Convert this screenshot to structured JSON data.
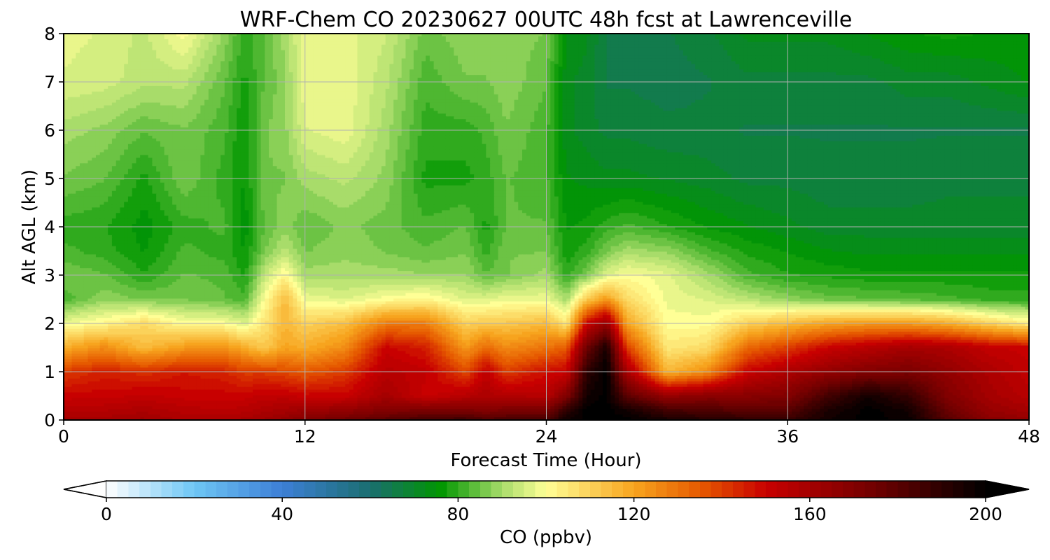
{
  "chart_data": {
    "type": "heatmap",
    "subtype": "filled-contour time-height cross section",
    "title": "WRF-Chem CO  20230627 00UTC 48h fcst at Lawrenceville",
    "xlabel": "Forecast Time (Hour)",
    "ylabel": "Alt AGL (km)",
    "xlim": [
      0,
      48
    ],
    "ylim": [
      0,
      8
    ],
    "xticks": [
      0,
      12,
      24,
      36,
      48
    ],
    "yticks": [
      0,
      1,
      2,
      3,
      4,
      5,
      6,
      7,
      8
    ],
    "grid": true,
    "colorbar": {
      "label": "CO  (ppbv)",
      "orientation": "horizontal",
      "position": "bottom",
      "range": [
        0,
        200
      ],
      "ticks": [
        0,
        40,
        80,
        120,
        160,
        200
      ],
      "extend": "both",
      "color_stops": [
        {
          "value": 0,
          "color": "#ffffff"
        },
        {
          "value": 20,
          "color": "#6ec6f5"
        },
        {
          "value": 40,
          "color": "#3d7fd6"
        },
        {
          "value": 60,
          "color": "#1a6e70"
        },
        {
          "value": 76,
          "color": "#009600"
        },
        {
          "value": 90,
          "color": "#a8dc6a"
        },
        {
          "value": 100,
          "color": "#ffff96"
        },
        {
          "value": 120,
          "color": "#f7a41e"
        },
        {
          "value": 135,
          "color": "#e65a00"
        },
        {
          "value": 150,
          "color": "#c80000"
        },
        {
          "value": 175,
          "color": "#700000"
        },
        {
          "value": 200,
          "color": "#000000"
        }
      ]
    },
    "x": [
      0,
      2,
      4,
      6,
      8,
      9,
      10,
      11,
      12,
      14,
      16,
      18,
      20,
      21,
      22,
      24,
      25,
      26,
      27,
      28,
      30,
      32,
      34,
      36,
      38,
      40,
      42,
      44,
      46,
      48
    ],
    "y": [
      0,
      0.2,
      0.5,
      1,
      1.5,
      2,
      2.5,
      3,
      3.5,
      4,
      5,
      6,
      7,
      8
    ],
    "z": [
      [
        160,
        160,
        162,
        158,
        158,
        160,
        162,
        165,
        170,
        175,
        180,
        185,
        186,
        182,
        184,
        184,
        196,
        200,
        200,
        200,
        195,
        192,
        190,
        188,
        196,
        200,
        198,
        180,
        168,
        165
      ],
      [
        155,
        156,
        158,
        155,
        154,
        155,
        158,
        160,
        162,
        165,
        170,
        172,
        172,
        170,
        172,
        172,
        190,
        200,
        200,
        196,
        185,
        182,
        180,
        180,
        194,
        200,
        196,
        176,
        164,
        160
      ],
      [
        150,
        150,
        152,
        150,
        150,
        150,
        152,
        152,
        150,
        150,
        160,
        150,
        155,
        158,
        156,
        155,
        170,
        196,
        200,
        180,
        164,
        168,
        168,
        170,
        185,
        196,
        188,
        170,
        160,
        155
      ],
      [
        140,
        145,
        142,
        146,
        144,
        140,
        140,
        138,
        135,
        140,
        155,
        152,
        138,
        152,
        140,
        148,
        150,
        190,
        200,
        160,
        116,
        125,
        150,
        158,
        165,
        170,
        172,
        165,
        158,
        152
      ],
      [
        118,
        125,
        115,
        122,
        123,
        118,
        112,
        120,
        118,
        125,
        150,
        145,
        122,
        132,
        125,
        130,
        135,
        175,
        195,
        140,
        105,
        108,
        132,
        140,
        150,
        155,
        160,
        158,
        152,
        150
      ],
      [
        98,
        102,
        108,
        100,
        100,
        96,
        106,
        116,
        110,
        114,
        128,
        128,
        110,
        112,
        112,
        115,
        105,
        150,
        165,
        120,
        100,
        100,
        110,
        115,
        120,
        122,
        122,
        118,
        110,
        103
      ],
      [
        82,
        88,
        86,
        86,
        84,
        82,
        100,
        115,
        98,
        96,
        100,
        102,
        96,
        96,
        98,
        98,
        90,
        112,
        122,
        108,
        98,
        96,
        92,
        88,
        85,
        84,
        83,
        82,
        80,
        80
      ],
      [
        86,
        84,
        79,
        84,
        83,
        78,
        93,
        102,
        90,
        90,
        90,
        89,
        89,
        84,
        86,
        90,
        80,
        86,
        96,
        100,
        97,
        90,
        82,
        79,
        78,
        77,
        77,
        77,
        77,
        77
      ],
      [
        82,
        80,
        76,
        82,
        80,
        76,
        86,
        92,
        86,
        88,
        86,
        84,
        86,
        80,
        86,
        86,
        77,
        80,
        86,
        90,
        88,
        82,
        78,
        76,
        74,
        73,
        73,
        73,
        73,
        73
      ],
      [
        80,
        79,
        75,
        80,
        82,
        75,
        84,
        88,
        84,
        87,
        85,
        82,
        84,
        78,
        84,
        84,
        76,
        77,
        80,
        82,
        79,
        76,
        74,
        72,
        70,
        70,
        70,
        70,
        70,
        70
      ],
      [
        86,
        84,
        78,
        86,
        80,
        76,
        86,
        86,
        90,
        92,
        88,
        78,
        78,
        80,
        84,
        82,
        74,
        73,
        72,
        72,
        71,
        70,
        68,
        68,
        67,
        67,
        67,
        68,
        68,
        68
      ],
      [
        90,
        88,
        84,
        86,
        82,
        76,
        86,
        88,
        96,
        98,
        90,
        80,
        80,
        82,
        86,
        82,
        72,
        70,
        68,
        68,
        67,
        67,
        66,
        66,
        66,
        66,
        66,
        66,
        66,
        66
      ],
      [
        96,
        95,
        92,
        92,
        84,
        78,
        84,
        88,
        98,
        98,
        92,
        82,
        86,
        86,
        88,
        84,
        72,
        70,
        66,
        66,
        65,
        66,
        68,
        68,
        68,
        68,
        70,
        70,
        72,
        74
      ],
      [
        97,
        96,
        93,
        100,
        88,
        80,
        84,
        90,
        98,
        97,
        94,
        85,
        88,
        88,
        88,
        86,
        74,
        72,
        66,
        64,
        66,
        68,
        72,
        72,
        72,
        74,
        76,
        77,
        76,
        75
      ]
    ]
  }
}
